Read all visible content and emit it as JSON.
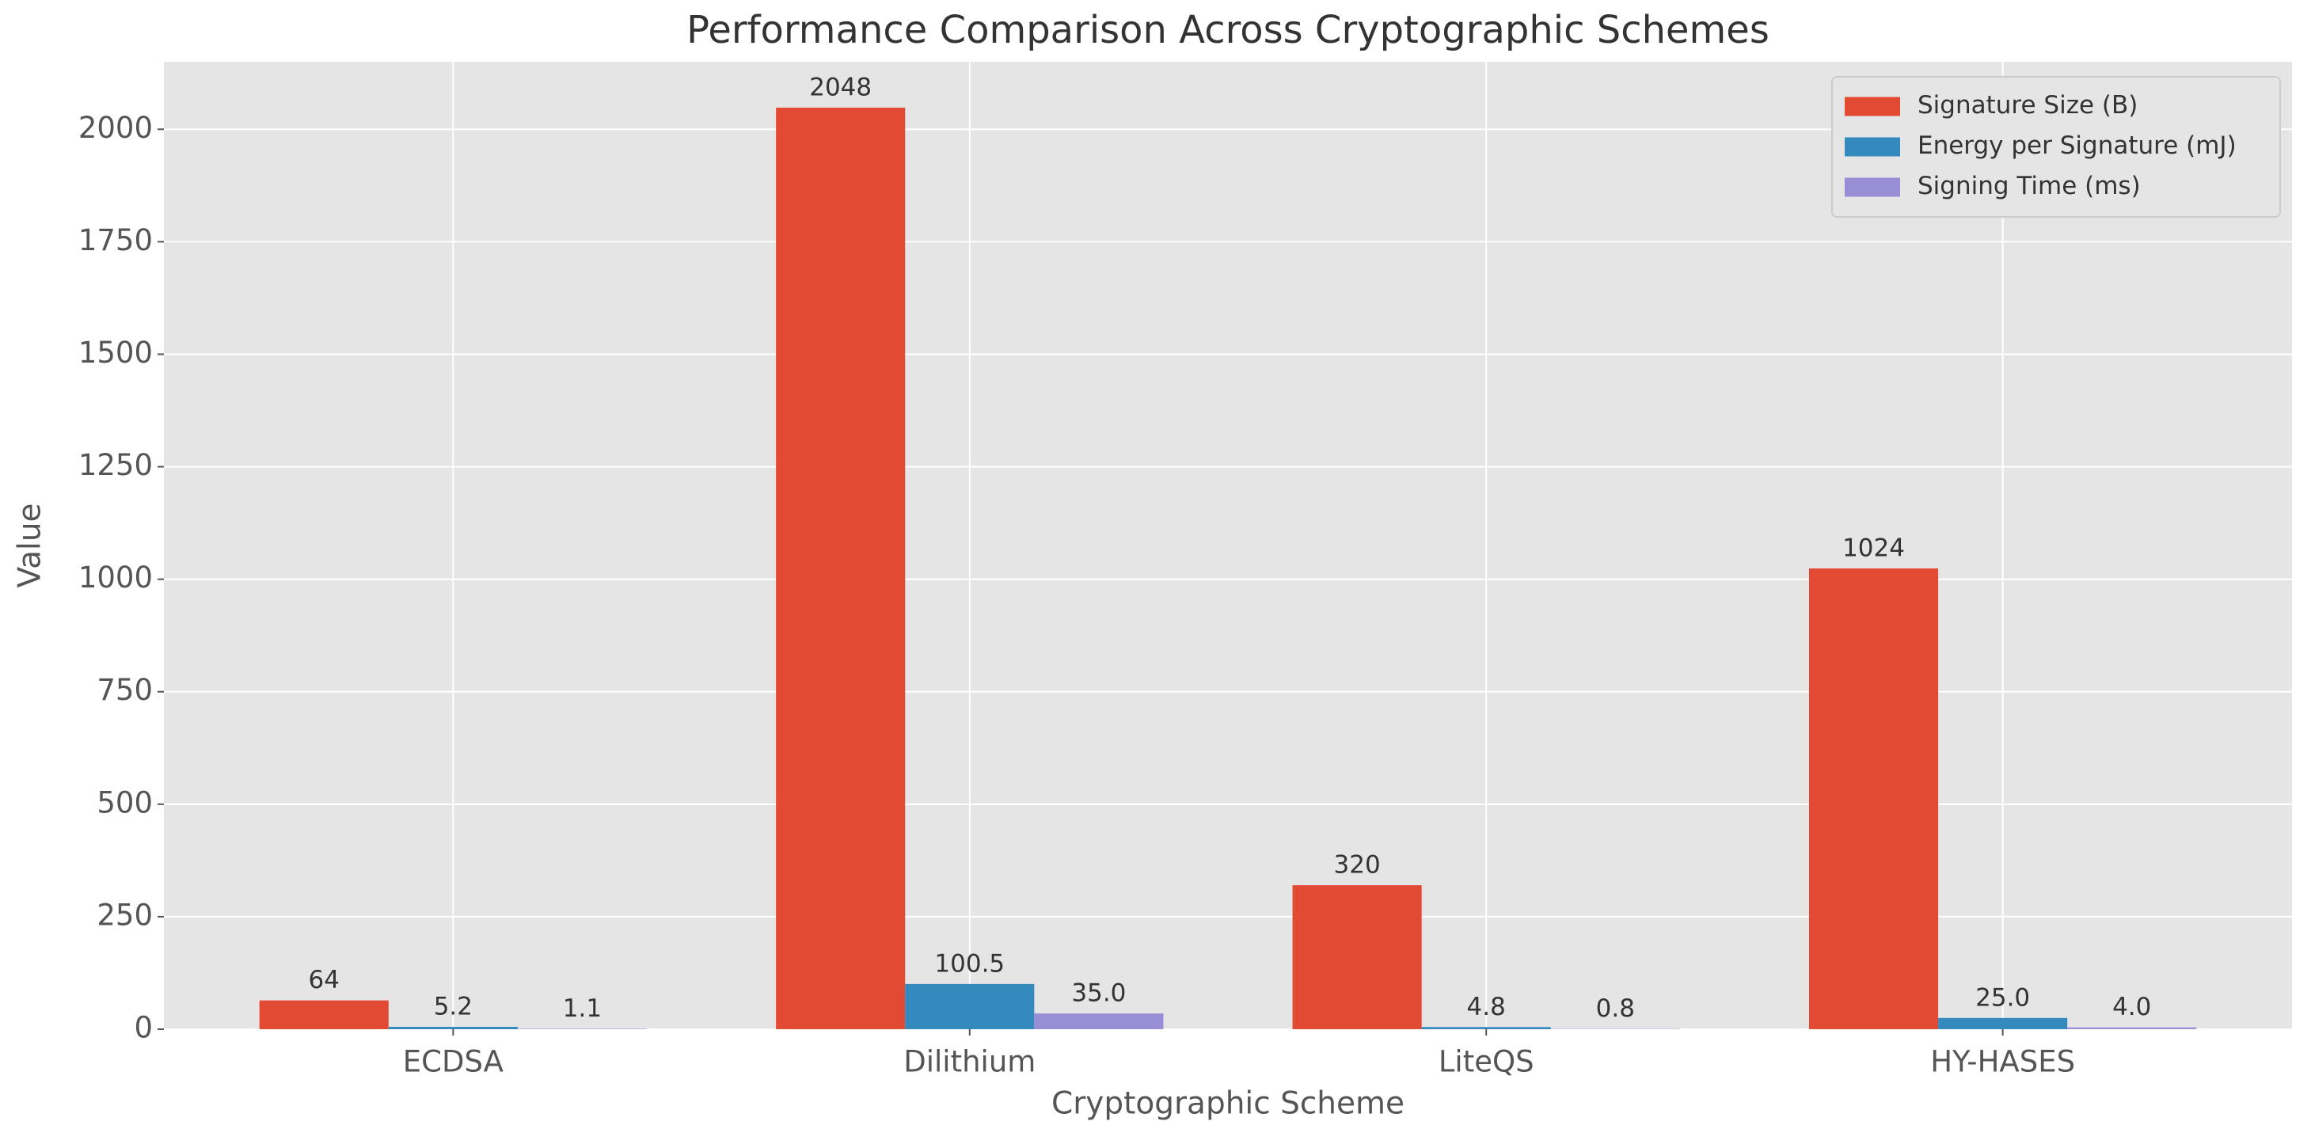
{
  "chart_data": {
    "type": "bar",
    "title": "Performance Comparison Across Cryptographic Schemes",
    "x_label": "Cryptographic Scheme",
    "y_label": "Value",
    "categories": [
      "ECDSA",
      "Dilithium",
      "LiteQS",
      "HY-HASES"
    ],
    "series": [
      {
        "name": "Signature Size (B)",
        "color": "#E24A33",
        "values": [
          64,
          2048,
          320,
          1024
        ]
      },
      {
        "name": "Energy per Signature (mJ)",
        "color": "#348ABD",
        "values": [
          5.2,
          100.5,
          4.8,
          25.0
        ],
        "value_labels": [
          "5.2",
          "100.5",
          "4.8",
          "25.0"
        ]
      },
      {
        "name": "Signing Time (ms)",
        "color": "#988ED5",
        "values": [
          1.1,
          35.0,
          0.8,
          4.0
        ],
        "value_labels": [
          "1.1",
          "35.0",
          "0.8",
          "4.0"
        ]
      }
    ],
    "ylim": [
      0,
      2150
    ],
    "yticks": [
      0,
      250,
      500,
      750,
      1000,
      1250,
      1500,
      1750,
      2000
    ],
    "grid": true,
    "legend": "upper right"
  }
}
